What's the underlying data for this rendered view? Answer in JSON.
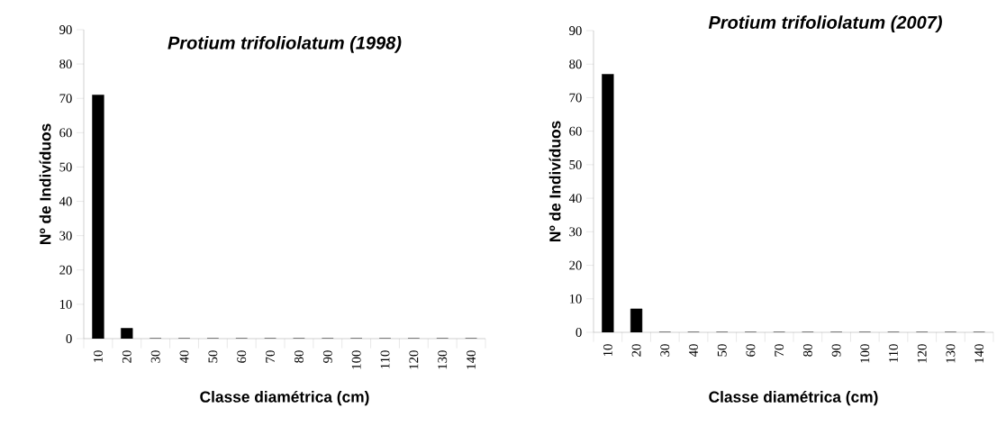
{
  "chart_data": [
    {
      "type": "bar",
      "title": "Protium trifoliolatum (1998)",
      "xlabel": "Classe diamétrica (cm)",
      "ylabel": "Nº de Indivíduos",
      "categories": [
        "10",
        "20",
        "30",
        "40",
        "50",
        "60",
        "70",
        "80",
        "90",
        "100",
        "110",
        "120",
        "130",
        "140"
      ],
      "values": [
        71,
        3,
        0,
        0,
        0,
        0,
        0,
        0,
        0,
        0,
        0,
        0,
        0,
        0
      ],
      "color": "#000000",
      "ylim": [
        0,
        90
      ],
      "yticks": [
        0,
        10,
        20,
        30,
        40,
        50,
        60,
        70,
        80,
        90
      ]
    },
    {
      "type": "bar",
      "title": "Protium trifoliolatum (2007)",
      "xlabel": "Classe diamétrica (cm)",
      "ylabel": "Nº de Indivíduos",
      "categories": [
        "10",
        "20",
        "30",
        "40",
        "50",
        "60",
        "70",
        "80",
        "90",
        "100",
        "110",
        "120",
        "130",
        "140"
      ],
      "values": [
        77,
        7,
        0,
        0,
        0,
        0,
        0,
        0,
        0,
        0,
        0,
        0,
        0,
        0
      ],
      "color": "#000000",
      "ylim": [
        0,
        90
      ],
      "yticks": [
        0,
        10,
        20,
        30,
        40,
        50,
        60,
        70,
        80,
        90
      ]
    }
  ]
}
